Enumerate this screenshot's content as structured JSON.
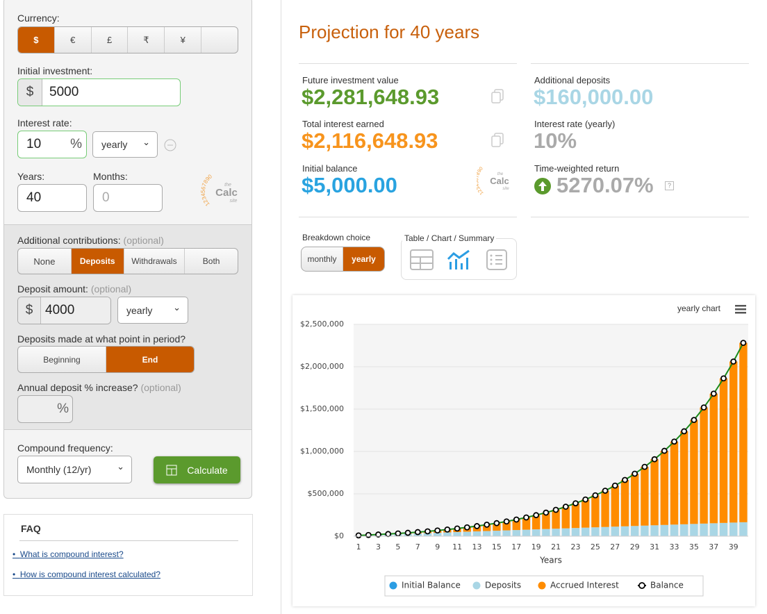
{
  "form": {
    "currency_label": "Currency:",
    "currencies": [
      "$",
      "€",
      "£",
      "₹",
      "¥"
    ],
    "initial_investment_label": "Initial investment:",
    "initial_prefix": "$",
    "initial_value": "5000",
    "interest_rate_label": "Interest rate:",
    "interest_rate_value": "10",
    "interest_rate_suffix": "%",
    "interest_period": "yearly",
    "years_label": "Years:",
    "years_value": "40",
    "months_label": "Months:",
    "months_placeholder": "0",
    "logo": {
      "digits": "1234567890",
      "the": "the",
      "calc": "Calc",
      "site": "site"
    },
    "contributions_label": "Additional contributions:",
    "optional": "(optional)",
    "contribution_options": [
      "None",
      "Deposits",
      "Withdrawals",
      "Both"
    ],
    "deposit_amount_label": "Deposit amount:",
    "deposit_prefix": "$",
    "deposit_value": "4000",
    "deposit_period": "yearly",
    "deposit_timing_label": "Deposits made at what point in period?",
    "timing_options": [
      "Beginning",
      "End"
    ],
    "annual_increase_label": "Annual deposit % increase?",
    "annual_increase_suffix": "%",
    "compound_label": "Compound frequency:",
    "compound_value": "Monthly (12/yr)",
    "calculate": "Calculate"
  },
  "faq": {
    "title": "FAQ",
    "links": [
      "What is compound interest?",
      "How is compound interest calculated?"
    ]
  },
  "results": {
    "title": "Projection for 40 years",
    "stats": [
      {
        "label": "Future investment value",
        "value": "$2,281,648.93"
      },
      {
        "label": "Total interest earned",
        "value": "$2,116,648.93"
      },
      {
        "label": "Initial balance",
        "value": "$5,000.00"
      },
      {
        "label": "Additional deposits",
        "value": "$160,000.00"
      },
      {
        "label": "Interest rate (yearly)",
        "value": "10%"
      },
      {
        "label": "Time-weighted return",
        "value": "5270.07%"
      }
    ],
    "help": "?"
  },
  "breakdown": {
    "label": "Breakdown choice",
    "options": [
      "monthly",
      "yearly"
    ],
    "view_label": "Table / Chart / Summary"
  },
  "chart_data": {
    "type": "bar",
    "stacked": true,
    "title": "yearly chart",
    "xlabel": "Years",
    "categories": [
      1,
      null,
      3,
      null,
      5,
      null,
      7,
      null,
      9,
      null,
      11,
      null,
      13,
      null,
      15,
      null,
      17,
      null,
      19,
      null,
      21,
      null,
      23,
      null,
      25,
      null,
      27,
      null,
      29,
      null,
      31,
      null,
      33,
      null,
      35,
      null,
      37,
      null,
      39,
      null
    ],
    "series": [
      {
        "name": "Initial Balance",
        "color": "#2b9de3",
        "values": [
          5000,
          5000,
          5000,
          5000,
          5000,
          5000,
          5000,
          5000,
          5000,
          5000,
          5000,
          5000,
          5000,
          5000,
          5000,
          5000,
          5000,
          5000,
          5000,
          5000,
          5000,
          5000,
          5000,
          5000,
          5000,
          5000,
          5000,
          5000,
          5000,
          5000,
          5000,
          5000,
          5000,
          5000,
          5000,
          5000,
          5000,
          5000,
          5000,
          5000
        ]
      },
      {
        "name": "Deposits",
        "color": "#a9d6e5",
        "values": [
          4000,
          8000,
          12000,
          16000,
          20000,
          24000,
          28000,
          32000,
          36000,
          40000,
          44000,
          48000,
          52000,
          56000,
          60000,
          64000,
          68000,
          72000,
          76000,
          80000,
          84000,
          88000,
          92000,
          96000,
          100000,
          104000,
          108000,
          112000,
          116000,
          120000,
          124000,
          128000,
          132000,
          136000,
          140000,
          144000,
          148000,
          152000,
          156000,
          160000
        ]
      },
      {
        "name": "Accrued Interest",
        "color": "#ff8c00",
        "values": [
          524,
          1521,
          3041,
          5139,
          7876,
          11318,
          15540,
          20623,
          26657,
          33741,
          41987,
          51514,
          62458,
          74967,
          89205,
          105352,
          123609,
          144197,
          167359,
          193365,
          222513,
          255131,
          291584,
          332272,
          377640,
          428178,
          484427,
          546983,
          616508,
          693733,
          779463,
          874589,
          980093,
          1097063,
          1226700,
          1370329,
          1529415,
          1705580,
          1900612,
          2116649
        ]
      },
      {
        "name": "Balance",
        "type": "line",
        "color": "#1a8a1a",
        "marker_color": "#000000",
        "values": [
          9524,
          14521,
          20041,
          26139,
          32876,
          40318,
          48540,
          57623,
          67657,
          78741,
          90987,
          104514,
          119458,
          135967,
          154205,
          174352,
          196609,
          221197,
          248359,
          278365,
          311513,
          348131,
          388584,
          433272,
          482640,
          537178,
          597427,
          663983,
          737508,
          818733,
          908463,
          1007589,
          1117093,
          1238063,
          1371700,
          1519329,
          1682415,
          1862580,
          2061612,
          2281649
        ]
      }
    ],
    "ylim": [
      0,
      2500000
    ],
    "yticks": [
      {
        "value": 0,
        "label": "$0"
      },
      {
        "value": 500000,
        "label": "$500,000"
      },
      {
        "value": 1000000,
        "label": "$1,000,000"
      },
      {
        "value": 1500000,
        "label": "$1,500,000"
      },
      {
        "value": 2000000,
        "label": "$2,000,000"
      },
      {
        "value": 2500000,
        "label": "$2,500,000"
      }
    ],
    "grid": true,
    "legend": "bottom"
  }
}
